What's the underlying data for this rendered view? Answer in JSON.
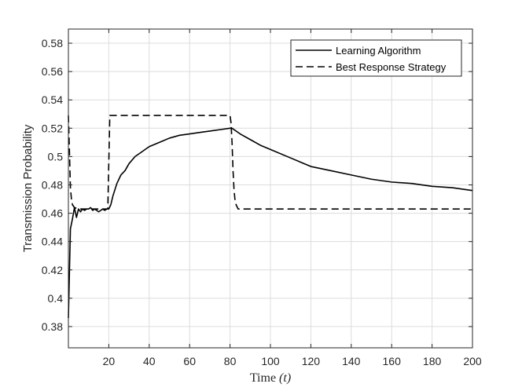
{
  "chart_data": {
    "type": "line",
    "xlabel": "Time",
    "xlabel_var": "(t)",
    "ylabel": "Transmission Probability",
    "xlim": [
      0,
      200
    ],
    "ylim": [
      0.365,
      0.59
    ],
    "x_ticks": [
      20,
      40,
      60,
      80,
      100,
      120,
      140,
      160,
      180,
      200
    ],
    "y_ticks": [
      0.38,
      0.4,
      0.42,
      0.44,
      0.46,
      0.48,
      0.5,
      0.52,
      0.54,
      0.56,
      0.58
    ],
    "y_tick_labels": [
      "0.38",
      "0.4",
      "0.42",
      "0.44",
      "0.46",
      "0.48",
      "0.5",
      "0.52",
      "0.54",
      "0.56",
      "0.58"
    ],
    "grid": true,
    "legend_position": "top-right",
    "series": [
      {
        "name": "Learning Algorithm",
        "style": "solid",
        "color": "#000000",
        "x": [
          0,
          1,
          2,
          3,
          4,
          5,
          6,
          7,
          8,
          9,
          10,
          11,
          12,
          13,
          14,
          15,
          16,
          17,
          18,
          19,
          20,
          21,
          22,
          24,
          26,
          28,
          30,
          33,
          36,
          40,
          45,
          50,
          55,
          60,
          65,
          70,
          75,
          80,
          81,
          85,
          90,
          95,
          100,
          110,
          120,
          130,
          140,
          150,
          160,
          170,
          180,
          190,
          200
        ],
        "y": [
          0.386,
          0.449,
          0.456,
          0.464,
          0.457,
          0.463,
          0.461,
          0.463,
          0.462,
          0.463,
          0.463,
          0.464,
          0.462,
          0.463,
          0.462,
          0.461,
          0.462,
          0.463,
          0.462,
          0.463,
          0.463,
          0.466,
          0.472,
          0.481,
          0.487,
          0.49,
          0.495,
          0.5,
          0.503,
          0.507,
          0.51,
          0.513,
          0.515,
          0.516,
          0.517,
          0.518,
          0.519,
          0.52,
          0.52,
          0.516,
          0.512,
          0.508,
          0.505,
          0.499,
          0.493,
          0.49,
          0.487,
          0.484,
          0.482,
          0.481,
          0.479,
          0.478,
          0.476
        ]
      },
      {
        "name": "Best Response Strategy",
        "style": "dashed",
        "color": "#000000",
        "x": [
          0,
          0.5,
          1,
          1.5,
          2,
          3,
          5,
          10,
          15,
          19.5,
          20.5,
          21,
          30,
          40,
          60,
          80,
          80.5,
          81,
          81.5,
          82,
          82.5,
          83,
          84,
          85,
          90,
          100,
          150,
          200
        ],
        "y": [
          0.529,
          0.505,
          0.478,
          0.47,
          0.466,
          0.464,
          0.463,
          0.463,
          0.463,
          0.463,
          0.529,
          0.529,
          0.529,
          0.529,
          0.529,
          0.529,
          0.524,
          0.51,
          0.49,
          0.476,
          0.469,
          0.466,
          0.463,
          0.463,
          0.463,
          0.463,
          0.463,
          0.463
        ]
      }
    ]
  }
}
